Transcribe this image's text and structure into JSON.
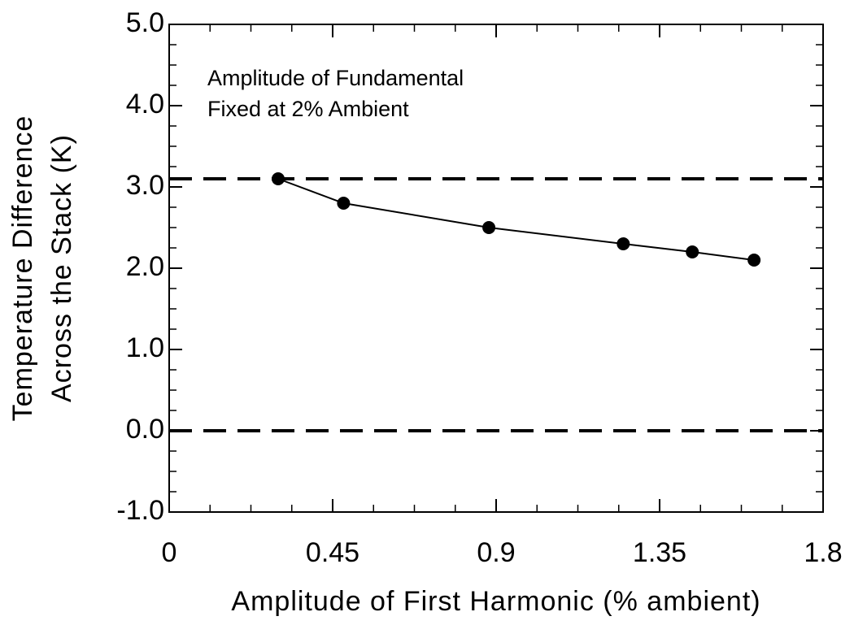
{
  "chart_data": {
    "type": "line",
    "ylabel": [
      "Temperature  Difference",
      "Across the Stack (K)"
    ],
    "xlabel": "Amplitude of First Harmonic (% ambient)",
    "annotations": [
      "Amplitude of Fundamental",
      "Fixed at 2% Ambient"
    ],
    "x": [
      0.3,
      0.48,
      0.88,
      1.25,
      1.44,
      1.61
    ],
    "values": [
      3.1,
      2.8,
      2.5,
      2.3,
      2.2,
      2.1
    ],
    "color": "#000000",
    "hlines": [
      3.1,
      0.0
    ],
    "xlim": [
      0,
      1.8
    ],
    "xticks": [
      0,
      0.45,
      0.9,
      1.35,
      1.8
    ],
    "ylim": [
      -1.0,
      5.0
    ],
    "yticks": [
      {
        "value": -1.0,
        "label": "-1.0"
      },
      {
        "value": 0.0,
        "label": "0.0"
      },
      {
        "value": 1.0,
        "label": "1.0"
      },
      {
        "value": 2.0,
        "label": "2.0"
      },
      {
        "value": 3.0,
        "label": "3.0"
      },
      {
        "value": 4.0,
        "label": "4.0"
      },
      {
        "value": 5.0,
        "label": "5.0"
      }
    ]
  }
}
